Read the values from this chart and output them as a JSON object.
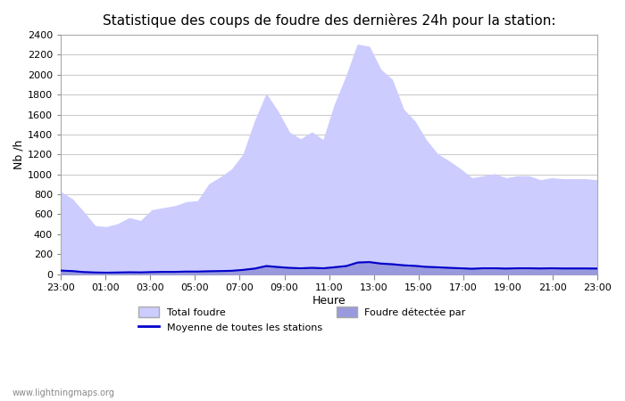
{
  "title": "Statistique des coups de foudre des dernières 24h pour la station:",
  "xlabel": "Heure",
  "ylabel": "Nb /h",
  "x_ticks": [
    "23:00",
    "01:00",
    "03:00",
    "05:00",
    "07:00",
    "09:00",
    "11:00",
    "13:00",
    "15:00",
    "17:00",
    "19:00",
    "21:00",
    "23:00"
  ],
  "ylim": [
    0,
    2400
  ],
  "y_ticks": [
    0,
    200,
    400,
    600,
    800,
    1000,
    1200,
    1400,
    1600,
    1800,
    2000,
    2200,
    2400
  ],
  "total_foudre_color": "#ccccff",
  "foudre_detectee_color": "#9999dd",
  "moyenne_color": "#0000cc",
  "background_color": "#ffffff",
  "watermark": "www.lightningmaps.org",
  "legend_total": "Total foudre",
  "legend_detectee": "Foudre détectée par",
  "legend_moyenne": "Moyenne de toutes les stations",
  "total_foudre": [
    820,
    750,
    620,
    480,
    470,
    500,
    560,
    530,
    640,
    660,
    680,
    720,
    730,
    900,
    970,
    1050,
    1200,
    1530,
    1800,
    1630,
    1420,
    1350,
    1420,
    1340,
    1700,
    1980,
    2300,
    2280,
    2050,
    1950,
    1650,
    1530,
    1340,
    1200,
    1130,
    1050,
    960,
    980,
    1000,
    960,
    980,
    980,
    940,
    960,
    950,
    950,
    950,
    940
  ],
  "foudre_detectee": [
    40,
    35,
    25,
    20,
    18,
    20,
    22,
    20,
    25,
    28,
    28,
    30,
    30,
    35,
    35,
    40,
    50,
    65,
    90,
    80,
    70,
    65,
    70,
    65,
    80,
    90,
    125,
    130,
    115,
    110,
    95,
    90,
    80,
    75,
    70,
    65,
    60,
    65,
    65,
    62,
    65,
    65,
    63,
    65,
    63,
    63,
    63,
    62
  ],
  "moyenne": [
    35,
    30,
    20,
    16,
    14,
    16,
    18,
    17,
    20,
    22,
    22,
    25,
    25,
    28,
    30,
    33,
    42,
    55,
    80,
    70,
    62,
    58,
    62,
    58,
    68,
    80,
    115,
    120,
    105,
    98,
    88,
    82,
    72,
    68,
    62,
    58,
    53,
    58,
    58,
    55,
    58,
    58,
    56,
    58,
    56,
    56,
    56,
    55
  ]
}
